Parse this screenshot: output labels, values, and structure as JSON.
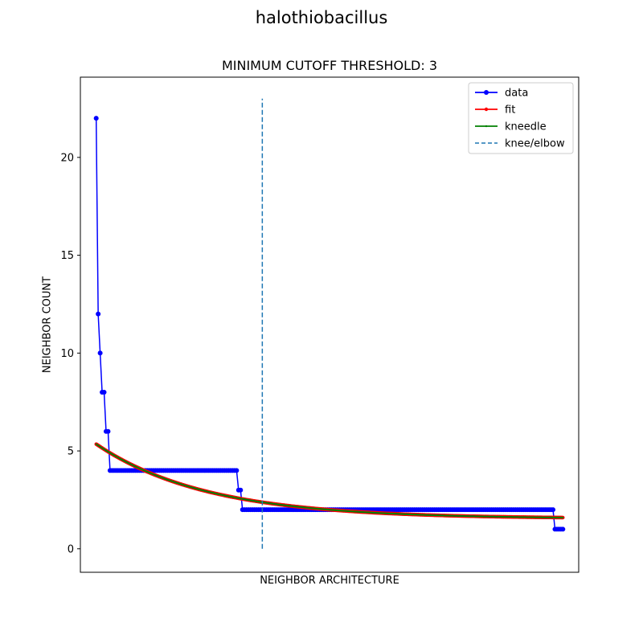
{
  "figure_title": "halothiobacillus",
  "chart_data": {
    "type": "line",
    "title": "MINIMUM CUTOFF THRESHOLD: 3",
    "xlabel": "NEIGHBOR ARCHITECTURE",
    "ylabel": "NEIGHBOR COUNT",
    "xlim": [
      -8,
      244
    ],
    "ylim": [
      -1.2,
      24.1
    ],
    "yticks": [
      0,
      5,
      10,
      15,
      20
    ],
    "xticks_shown": false,
    "grid": false,
    "legend_position": "upper-right",
    "series": [
      {
        "name": "data",
        "color": "#0000ff",
        "marker": "circle",
        "steps": [
          {
            "x": [
              0,
              0
            ],
            "y": 22
          },
          {
            "x": [
              1,
              1
            ],
            "y": 12
          },
          {
            "x": [
              2,
              2
            ],
            "y": 10
          },
          {
            "x": [
              3,
              4
            ],
            "y": 8
          },
          {
            "x": [
              5,
              6
            ],
            "y": 6
          },
          {
            "x": [
              7,
              71
            ],
            "y": 4
          },
          {
            "x": [
              72,
              73
            ],
            "y": 3
          },
          {
            "x": [
              74,
              231
            ],
            "y": 2
          },
          {
            "x": [
              232,
              236
            ],
            "y": 1
          }
        ]
      },
      {
        "name": "fit",
        "color": "#ff0000",
        "marker": "point",
        "model": "exponential",
        "x_range": [
          0,
          236
        ],
        "start_y": 5.35,
        "end_y": 1.75,
        "decay_rate": 0.018,
        "asymptote": 1.54
      },
      {
        "name": "kneedle",
        "color": "#008000",
        "marker": "small-point",
        "model": "exponential",
        "x_range": [
          0,
          236
        ],
        "start_y": 5.35,
        "end_y": 1.75,
        "decay_rate": 0.018,
        "asymptote": 1.54
      },
      {
        "name": "knee/elbow",
        "color": "#1f77b4",
        "style": "dashed",
        "vline_x": 84,
        "y_range": [
          0,
          23
        ]
      }
    ]
  }
}
